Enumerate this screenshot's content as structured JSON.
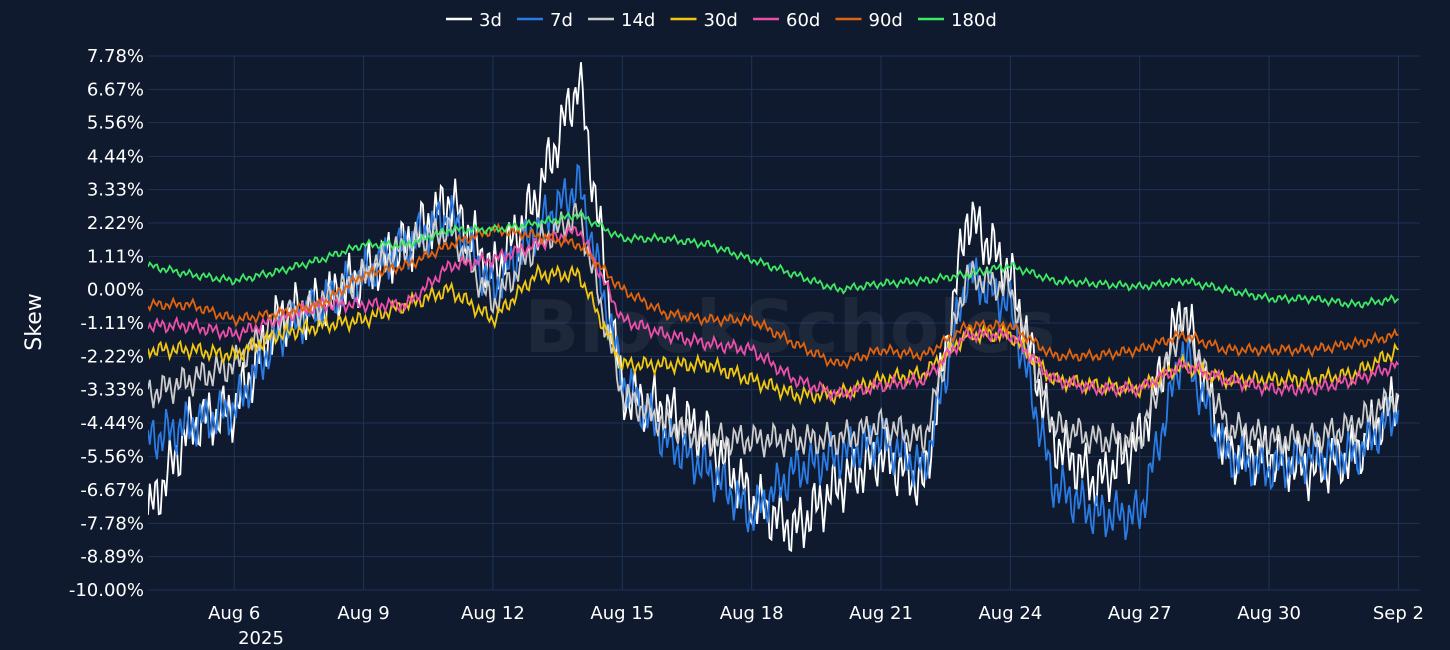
{
  "chart_data": {
    "type": "line",
    "title": "",
    "xlabel": "",
    "ylabel": "Skew",
    "watermark": "BlockScholes",
    "colors": {
      "background": "#0f1a2e",
      "grid": "#1e3356",
      "text": "#ffffff"
    },
    "legend_placement": "top-center",
    "grid": true,
    "xlim": [
      "2025-08-04",
      "2025-09-02"
    ],
    "ylim": [
      -10.0,
      7.78
    ],
    "y_unit": "%",
    "yticks": [
      -10.0,
      -8.89,
      -7.78,
      -6.67,
      -5.56,
      -4.44,
      -3.33,
      -2.22,
      -1.11,
      0.0,
      1.11,
      2.22,
      3.33,
      4.44,
      5.56,
      6.67,
      7.78
    ],
    "ytick_labels": [
      "-10.00%",
      "-8.89%",
      "-7.78%",
      "-6.67%",
      "-5.56%",
      "-4.44%",
      "-3.33%",
      "-2.22%",
      "-1.11%",
      "0.00%",
      "1.11%",
      "2.22%",
      "3.33%",
      "4.44%",
      "5.56%",
      "6.67%",
      "7.78%"
    ],
    "xticks": [
      "2025-08-06",
      "2025-08-09",
      "2025-08-12",
      "2025-08-15",
      "2025-08-18",
      "2025-08-21",
      "2025-08-24",
      "2025-08-27",
      "2025-08-30",
      "2025-09-02"
    ],
    "xtick_labels": [
      "Aug 6",
      "Aug 9",
      "Aug 12",
      "Aug 15",
      "Aug 18",
      "Aug 21",
      "Aug 24",
      "Aug 27",
      "Aug 30",
      "Sep 2"
    ],
    "year_label": "2025",
    "x": [
      "2025-08-04",
      "2025-08-05",
      "2025-08-06",
      "2025-08-07",
      "2025-08-08",
      "2025-08-09",
      "2025-08-10",
      "2025-08-11",
      "2025-08-12",
      "2025-08-13",
      "2025-08-14",
      "2025-08-15",
      "2025-08-16",
      "2025-08-17",
      "2025-08-18",
      "2025-08-19",
      "2025-08-20",
      "2025-08-21",
      "2025-08-22",
      "2025-08-23",
      "2025-08-24",
      "2025-08-25",
      "2025-08-26",
      "2025-08-27",
      "2025-08-28",
      "2025-08-29",
      "2025-08-30",
      "2025-08-31",
      "2025-09-01",
      "2025-09-02"
    ],
    "series": [
      {
        "name": "3d",
        "color": "#ffffff",
        "values": [
          -7.5,
          -4.5,
          -4.0,
          -1.0,
          -0.5,
          0.5,
          1.5,
          3.0,
          0.5,
          3.0,
          7.0,
          -3.5,
          -4.0,
          -5.0,
          -7.0,
          -8.0,
          -6.5,
          -5.5,
          -6.5,
          2.5,
          0.5,
          -5.0,
          -6.5,
          -5.0,
          -0.5,
          -5.5,
          -5.5,
          -6.0,
          -5.5,
          -3.5
        ]
      },
      {
        "name": "7d",
        "color": "#2a7be4",
        "values": [
          -5.0,
          -4.5,
          -4.0,
          -1.5,
          -0.5,
          0.5,
          1.5,
          2.5,
          0.0,
          2.0,
          3.5,
          -3.0,
          -5.0,
          -6.0,
          -7.5,
          -6.0,
          -5.5,
          -5.0,
          -6.0,
          0.5,
          -0.5,
          -6.5,
          -7.5,
          -7.5,
          -2.0,
          -5.5,
          -6.0,
          -5.5,
          -5.5,
          -4.0
        ]
      },
      {
        "name": "14d",
        "color": "#cccccc",
        "values": [
          -3.5,
          -3.0,
          -2.5,
          -1.0,
          -0.5,
          0.5,
          1.5,
          2.0,
          -0.5,
          1.5,
          2.5,
          -3.5,
          -4.5,
          -5.0,
          -5.0,
          -5.0,
          -5.0,
          -4.5,
          -5.0,
          0.5,
          0.0,
          -4.5,
          -5.0,
          -5.0,
          -1.0,
          -4.5,
          -5.0,
          -5.0,
          -4.5,
          -3.5
        ]
      },
      {
        "name": "30d",
        "color": "#f2c80f",
        "values": [
          -2.0,
          -2.0,
          -2.2,
          -1.5,
          -1.2,
          -1.0,
          -0.5,
          0.0,
          -1.0,
          0.5,
          0.5,
          -2.5,
          -2.5,
          -2.5,
          -3.0,
          -3.5,
          -3.5,
          -3.0,
          -2.8,
          -1.5,
          -1.5,
          -3.0,
          -3.2,
          -3.3,
          -2.5,
          -3.0,
          -3.0,
          -3.0,
          -2.8,
          -2.0
        ]
      },
      {
        "name": "60d",
        "color": "#ec4fa8",
        "values": [
          -1.2,
          -1.2,
          -1.5,
          -1.0,
          -0.5,
          -0.5,
          -0.5,
          0.8,
          1.0,
          1.5,
          2.0,
          -1.0,
          -1.5,
          -1.8,
          -2.0,
          -3.0,
          -3.5,
          -3.2,
          -3.0,
          -1.5,
          -1.5,
          -3.0,
          -3.3,
          -3.3,
          -2.5,
          -3.0,
          -3.3,
          -3.3,
          -3.0,
          -2.5
        ]
      },
      {
        "name": "90d",
        "color": "#e0630e",
        "values": [
          -0.5,
          -0.5,
          -1.0,
          -0.8,
          -0.5,
          0.5,
          0.8,
          1.5,
          2.0,
          1.8,
          1.5,
          0.0,
          -0.8,
          -1.0,
          -1.0,
          -1.8,
          -2.5,
          -2.0,
          -2.2,
          -1.2,
          -1.2,
          -2.2,
          -2.2,
          -2.0,
          -1.5,
          -2.0,
          -2.0,
          -2.0,
          -1.8,
          -1.5
        ]
      },
      {
        "name": "180d",
        "color": "#3ee863",
        "values": [
          0.8,
          0.5,
          0.3,
          0.6,
          1.0,
          1.5,
          1.5,
          2.0,
          2.0,
          2.2,
          2.5,
          1.7,
          1.7,
          1.5,
          1.0,
          0.5,
          0.0,
          0.2,
          0.3,
          0.5,
          0.8,
          0.3,
          0.2,
          0.1,
          0.3,
          0.0,
          -0.3,
          -0.3,
          -0.5,
          -0.3
        ]
      }
    ]
  }
}
